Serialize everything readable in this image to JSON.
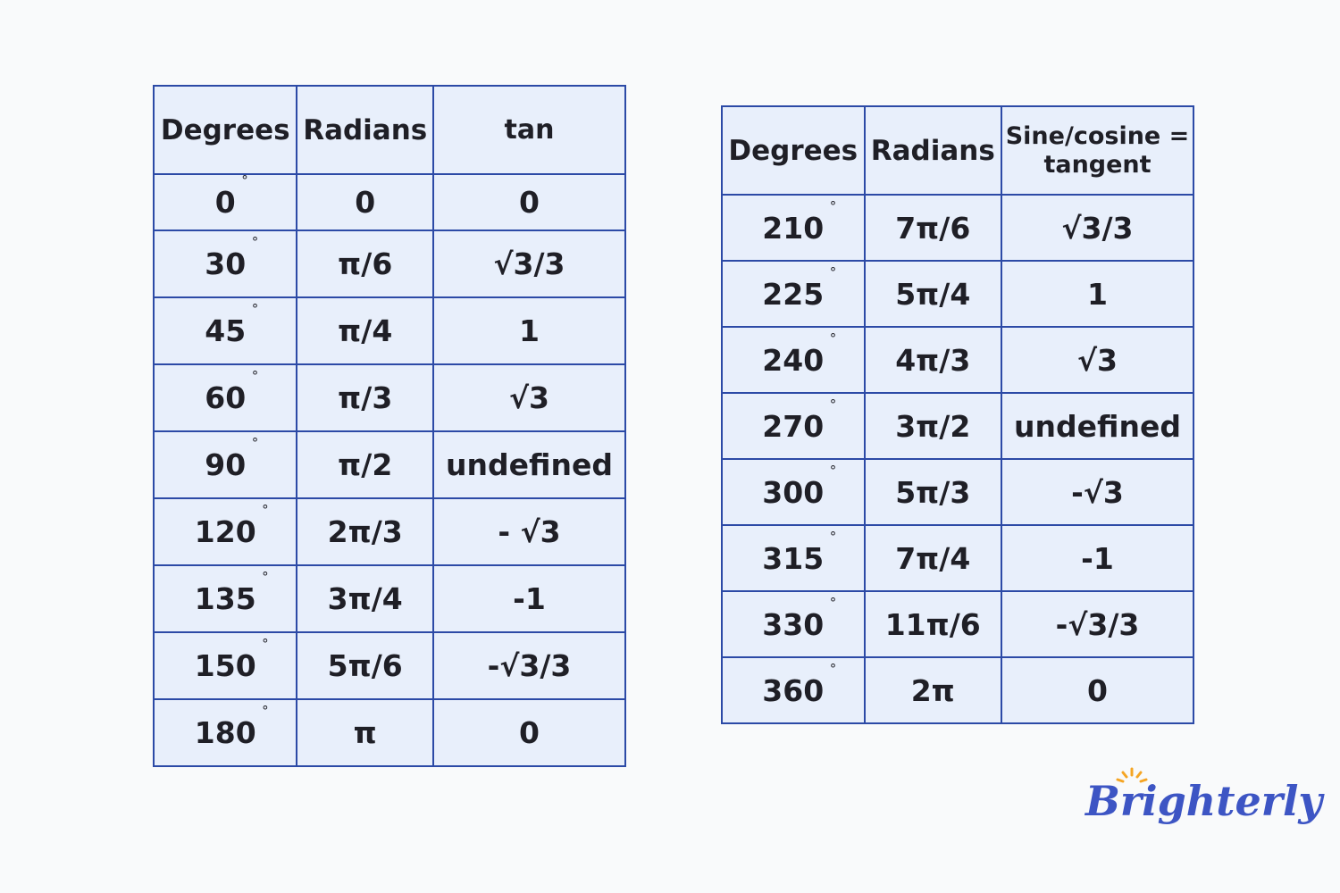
{
  "left_table": {
    "headers": [
      "Degrees",
      "Radians",
      "tan"
    ],
    "rows": [
      {
        "deg": "0",
        "rad": "0",
        "val": "0"
      },
      {
        "deg": "30",
        "rad": "π/6",
        "val": "√3/3"
      },
      {
        "deg": "45",
        "rad": "π/4",
        "val": "1"
      },
      {
        "deg": "60",
        "rad": "π/3",
        "val": "√3"
      },
      {
        "deg": "90",
        "rad": "π/2",
        "val": "undefined"
      },
      {
        "deg": "120",
        "rad": "2π/3",
        "val": "- √3"
      },
      {
        "deg": "135",
        "rad": "3π/4",
        "val": "-1"
      },
      {
        "deg": "150",
        "rad": "5π/6",
        "val": "-√3/3"
      },
      {
        "deg": "180",
        "rad": "π",
        "val": "0"
      }
    ]
  },
  "right_table": {
    "headers": [
      "Degrees",
      "Radians",
      "Sine/cosine = tangent"
    ],
    "rows": [
      {
        "deg": "210",
        "rad": "7π/6",
        "val": "√3/3"
      },
      {
        "deg": "225",
        "rad": "5π/4",
        "val": "1"
      },
      {
        "deg": "240",
        "rad": "4π/3",
        "val": "√3"
      },
      {
        "deg": "270",
        "rad": "3π/2",
        "val": "undefined"
      },
      {
        "deg": "300",
        "rad": "5π/3",
        "val": "-√3"
      },
      {
        "deg": "315",
        "rad": "7π/4",
        "val": "-1"
      },
      {
        "deg": "330",
        "rad": "11π/6",
        "val": "-√3/3"
      },
      {
        "deg": "360",
        "rad": "2π",
        "val": "0"
      }
    ]
  },
  "degree_symbol": "°",
  "logo": {
    "text": "Brighterly",
    "color": "#3d55c4",
    "sun_color": "#f5a524"
  },
  "colors": {
    "border": "#2c4aa6",
    "cell_bg": "#e8effb",
    "background": "#f9fafb"
  }
}
